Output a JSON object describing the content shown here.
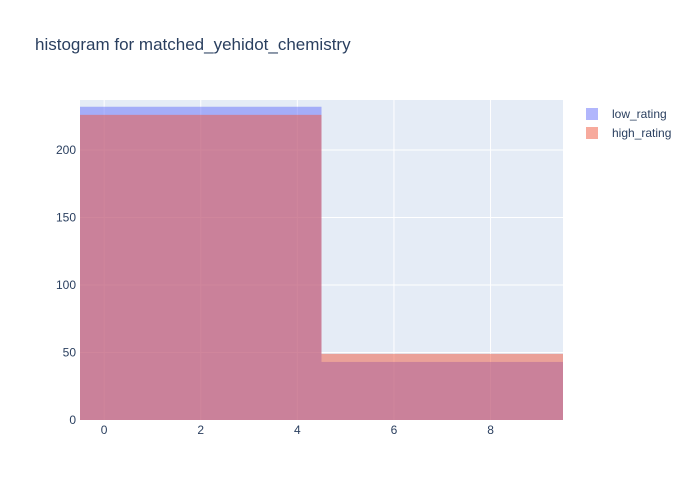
{
  "chart_data": {
    "type": "bar",
    "title": "histogram for matched_yehidot_chemistry",
    "xlabel": "",
    "ylabel": "",
    "bins": [
      [
        -0.5,
        4.5
      ],
      [
        4.5,
        9.5
      ]
    ],
    "xlim": [
      -0.5,
      9.5
    ],
    "ylim": [
      0,
      237
    ],
    "xticks": [
      0,
      2,
      4,
      6,
      8
    ],
    "yticks": [
      0,
      50,
      100,
      150,
      200
    ],
    "grid": true,
    "barmode": "overlay",
    "legend_position": "top-right",
    "series": [
      {
        "name": "low_rating",
        "values": [
          232,
          43
        ],
        "color": "#636efa",
        "opacity": 0.5
      },
      {
        "name": "high_rating",
        "values": [
          226,
          49
        ],
        "color": "#ef553b",
        "opacity": 0.5
      }
    ],
    "plot_bg": "#e5ecf6",
    "gridline_color": "#ffffff"
  }
}
